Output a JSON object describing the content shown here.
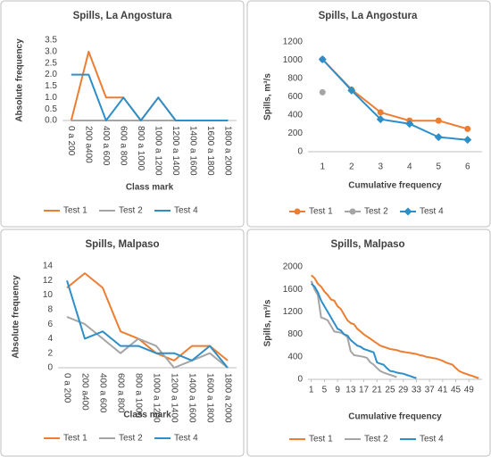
{
  "chart_data": [
    {
      "type": "line",
      "title": "Spills, La Angostura",
      "x_label": "Class mark",
      "y_label": "Absolute frequency",
      "categories": [
        "0 a 200",
        "200 a400",
        "400 a 600",
        "600 a 800",
        "800 a 1000",
        "1000 a 1200",
        "1200 a 1400",
        "1400 a 1600",
        "1600 a 1800",
        "1800 a 2000"
      ],
      "series": [
        {
          "name": "Test 1",
          "color": "#ed7d31",
          "values": [
            0,
            3,
            1,
            1,
            0,
            1,
            0,
            0,
            0,
            0
          ]
        },
        {
          "name": "Test 2",
          "color": "#a5a5a5",
          "values": [
            0,
            0,
            0,
            0,
            0,
            0,
            0,
            0,
            0,
            0
          ]
        },
        {
          "name": "Test 4",
          "color": "#2e8fc8",
          "values": [
            2,
            2,
            0,
            1,
            0,
            1,
            0,
            0,
            0,
            0
          ]
        }
      ],
      "ylim": [
        0,
        3.5
      ],
      "yticks": [
        {
          "value": 0,
          "label": "0.0"
        },
        {
          "value": 0.5,
          "label": "0.5"
        },
        {
          "value": 1,
          "label": "1.0"
        },
        {
          "value": 1.5,
          "label": "1.5"
        },
        {
          "value": 2,
          "label": "2.0"
        },
        {
          "value": 2.5,
          "label": "2.5"
        },
        {
          "value": 3,
          "label": "3.0"
        },
        {
          "value": 3.5,
          "label": "3.5"
        }
      ],
      "grid": false
    },
    {
      "type": "line",
      "title": "Spills, La Angostura",
      "x_label": "Cumulative frequency",
      "y_label": "Spills, m³/s",
      "categories": [
        "1",
        "2",
        "3",
        "4",
        "5",
        "6"
      ],
      "series": [
        {
          "name": "Test 1",
          "color": "#ed7d31",
          "marker": "circle",
          "values": [
            1010,
            680,
            430,
            340,
            340,
            250
          ]
        },
        {
          "name": "Test 2",
          "color": "#a5a5a5",
          "marker": "circle",
          "values": [
            650,
            null,
            null,
            null,
            null,
            null
          ]
        },
        {
          "name": "Test 4",
          "color": "#2e8fc8",
          "marker": "diamond",
          "values": [
            1010,
            670,
            355,
            305,
            160,
            130
          ]
        }
      ],
      "ylim": [
        0,
        1200
      ],
      "yticks": [
        0,
        200,
        400,
        600,
        800,
        1000,
        1200
      ],
      "grid": false
    },
    {
      "type": "line",
      "title": "Spills, Malpaso",
      "x_label": "Class mark",
      "y_label": "Absolute frequency",
      "categories": [
        "0 a 200",
        "200 a400",
        "400 a 600",
        "600 a 800",
        "800 a 1000",
        "1000 a 1200",
        "1200 a 1400",
        "1400 a 1600",
        "1600 a 1800",
        "1800 a 2000"
      ],
      "series": [
        {
          "name": "Test 1",
          "color": "#ed7d31",
          "values": [
            11,
            13,
            11,
            5,
            4,
            2,
            1,
            3,
            3,
            1
          ]
        },
        {
          "name": "Test 2",
          "color": "#a5a5a5",
          "values": [
            7,
            6,
            4,
            2,
            4,
            3,
            0,
            1,
            2,
            0
          ]
        },
        {
          "name": "Test 4",
          "color": "#2e8fc8",
          "values": [
            12,
            4,
            5,
            3,
            3,
            2,
            2,
            1,
            3,
            0
          ]
        }
      ],
      "ylim": [
        0,
        14
      ],
      "yticks": [
        0,
        2,
        4,
        6,
        8,
        10,
        12,
        14
      ],
      "grid": false
    },
    {
      "type": "line",
      "title": "Spills, Malpaso",
      "x_label": "Cumulative frequency",
      "y_label": "Spills, m³/s",
      "x": [
        1,
        2,
        3,
        4,
        5,
        6,
        7,
        8,
        9,
        10,
        11,
        12,
        13,
        14,
        15,
        16,
        17,
        18,
        19,
        20,
        21,
        22,
        23,
        24,
        25,
        26,
        27,
        28,
        29,
        30,
        31,
        32,
        33,
        34,
        35,
        36,
        37,
        38,
        39,
        40,
        41,
        42,
        43,
        44,
        45,
        46,
        47,
        48,
        49,
        50,
        51,
        52
      ],
      "xlim": [
        0,
        53
      ],
      "xticks": [
        1,
        5,
        9,
        13,
        17,
        21,
        25,
        29,
        33,
        37,
        41,
        45,
        49
      ],
      "series": [
        {
          "name": "Test 1",
          "color": "#ed7d31",
          "values": [
            1850,
            1800,
            1700,
            1650,
            1560,
            1500,
            1420,
            1400,
            1300,
            1250,
            1150,
            1050,
            1000,
            980,
            900,
            850,
            800,
            760,
            720,
            680,
            640,
            600,
            580,
            560,
            540,
            530,
            520,
            500,
            490,
            480,
            470,
            460,
            450,
            430,
            420,
            400,
            390,
            380,
            370,
            350,
            330,
            300,
            280,
            260,
            200,
            150,
            120,
            100,
            80,
            60,
            40,
            20
          ]
        },
        {
          "name": "Test 2",
          "color": "#a5a5a5",
          "values": [
            1750,
            1600,
            1500,
            1100,
            1080,
            1050,
            950,
            850,
            840,
            830,
            800,
            750,
            500,
            430,
            420,
            410,
            400,
            380,
            300,
            260,
            200,
            150,
            120,
            100,
            80,
            60,
            40,
            null,
            null,
            null,
            null,
            null,
            null,
            null,
            null,
            null,
            null,
            null,
            null,
            null,
            null,
            null,
            null,
            null,
            null,
            null,
            null,
            null,
            null,
            null,
            null,
            null
          ]
        },
        {
          "name": "Test 4",
          "color": "#2e8fc8",
          "values": [
            1700,
            1650,
            1550,
            1400,
            1300,
            1200,
            1100,
            1000,
            900,
            870,
            800,
            780,
            700,
            650,
            600,
            580,
            540,
            520,
            500,
            480,
            300,
            280,
            260,
            200,
            150,
            140,
            120,
            110,
            100,
            80,
            60,
            40,
            20,
            null,
            null,
            null,
            null,
            null,
            null,
            null,
            null,
            null,
            null,
            null,
            null,
            null,
            null,
            null,
            null,
            null,
            null,
            null
          ]
        }
      ],
      "ylim": [
        0,
        2000
      ],
      "yticks": [
        0,
        400,
        800,
        1200,
        1600,
        2000
      ],
      "grid": false
    }
  ]
}
